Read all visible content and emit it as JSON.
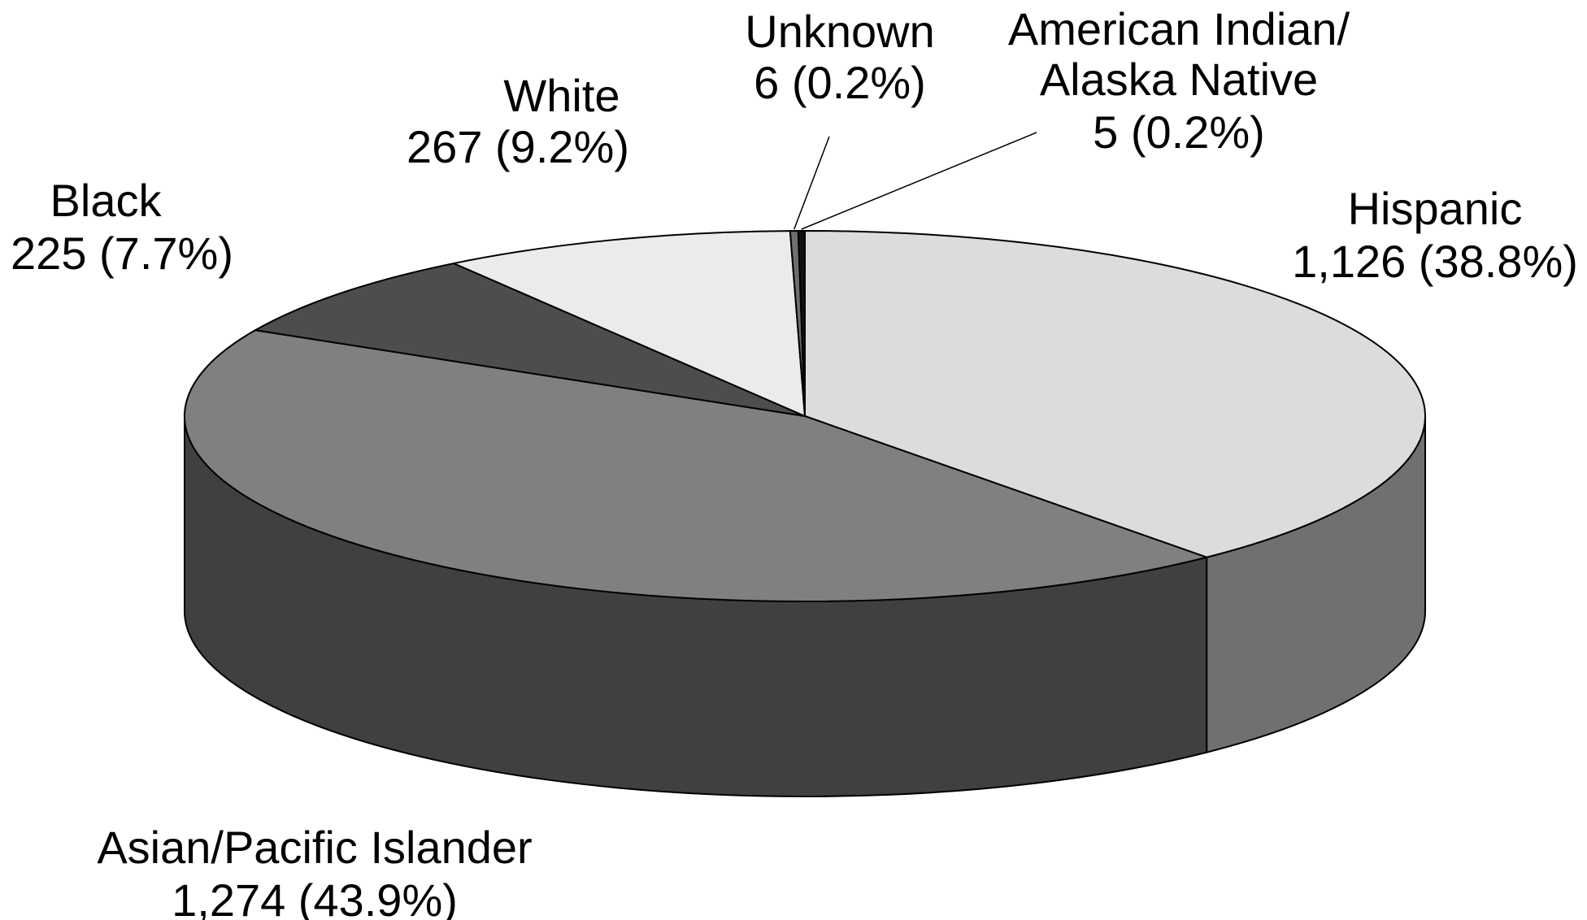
{
  "chart_data": {
    "type": "pie",
    "style": "3d",
    "title": "",
    "slices": [
      {
        "name": "Hispanic",
        "value": 1126,
        "percent": 38.8,
        "value_text": "1,126 (38.8%)",
        "color": "#dcdcdc"
      },
      {
        "name": "Asian/Pacific Islander",
        "value": 1274,
        "percent": 43.9,
        "value_text": "1,274 (43.9%)",
        "color": "#808080"
      },
      {
        "name": "Black",
        "value": 225,
        "percent": 7.7,
        "value_text": "225 (7.7%)",
        "color": "#4d4d4d"
      },
      {
        "name": "White",
        "value": 267,
        "percent": 9.2,
        "value_text": "267 (9.2%)",
        "color": "#ebebeb"
      },
      {
        "name": "Unknown",
        "value": 6,
        "percent": 0.2,
        "value_text": "6 (0.2%)",
        "color": "#6e6e6e"
      },
      {
        "name": "American Indian/Alaska Native",
        "name_lines": [
          "American Indian/",
          "Alaska Native"
        ],
        "value": 5,
        "percent": 0.2,
        "value_text": "5 (0.2%)",
        "color": "#111111"
      }
    ],
    "side_colors": [
      "#707070",
      "#404040"
    ]
  }
}
